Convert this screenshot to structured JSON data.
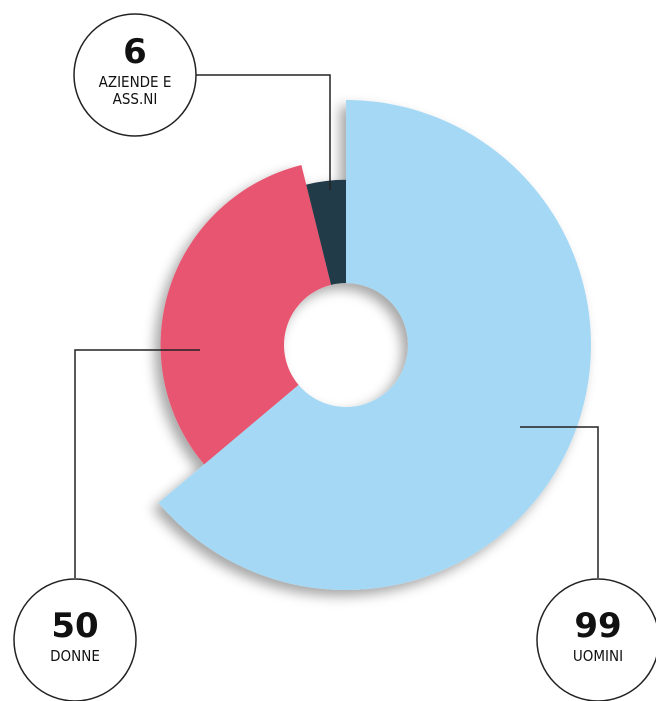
{
  "chart_data": {
    "type": "pie",
    "categories": [
      "UOMINI",
      "DONNE",
      "AZIENDE E ASS.NI"
    ],
    "values": [
      99,
      50,
      6
    ],
    "colors": [
      "#a5d8f5",
      "#e8546f",
      "#243b4a"
    ]
  }
}
